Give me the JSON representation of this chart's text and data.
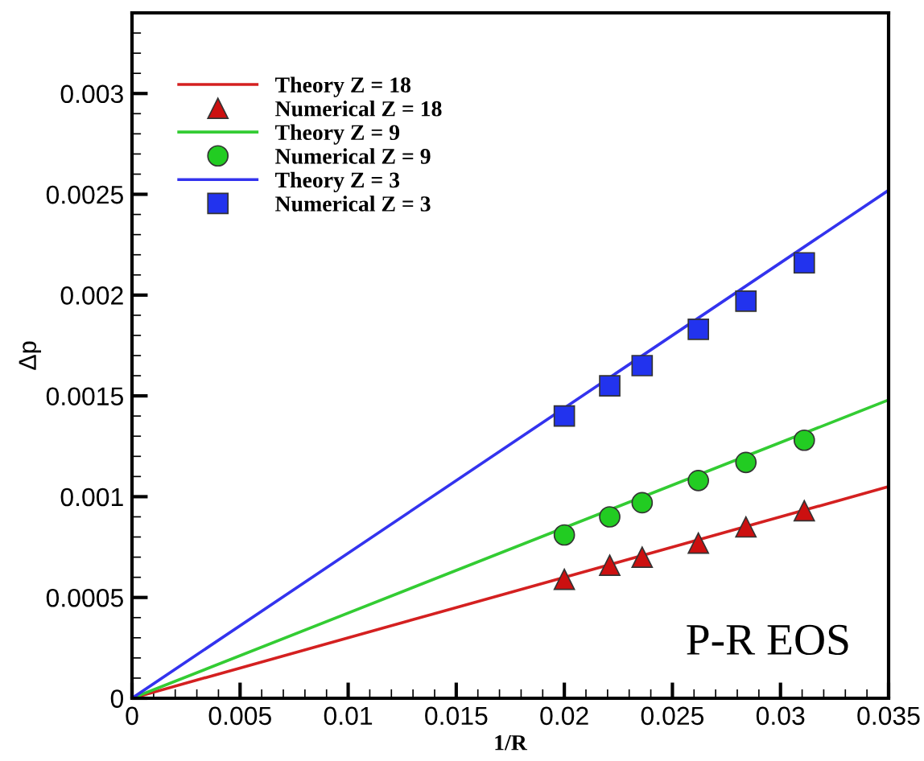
{
  "chart_data": {
    "type": "line",
    "xlabel": "1/R",
    "ylabel": "Δp",
    "annotations": [
      "P-R EOS"
    ],
    "xlim": [
      0,
      0.035
    ],
    "ylim": [
      0,
      0.0034
    ],
    "xticks": [
      {
        "value": 0,
        "label": "0"
      },
      0.005,
      0.01,
      0.015,
      0.02,
      0.025,
      0.03,
      0.035
    ],
    "yticks": [
      {
        "value": 0,
        "label": "0"
      },
      0.0005,
      0.001,
      0.0015,
      0.002,
      0.0025,
      0.003
    ],
    "grid": false,
    "legend": "top left",
    "series": [
      {
        "name": "Theory Z = 18",
        "color": "#d42020",
        "x": [
          0,
          0.035
        ],
        "values": [
          0,
          0.00105
        ],
        "marker": "none"
      },
      {
        "name": "Numerical Z = 18",
        "type": "scatter",
        "color": "#cc1010",
        "marker": "triangle",
        "x": [
          0.02,
          0.0221,
          0.0236,
          0.0262,
          0.0284,
          0.0311
        ],
        "values": [
          0.00059,
          0.00066,
          0.0007,
          0.00077,
          0.00085,
          0.00093
        ]
      },
      {
        "name": "Theory Z = 9",
        "color": "#33cc33",
        "x": [
          0,
          0.035
        ],
        "values": [
          0,
          0.00148
        ],
        "marker": "none"
      },
      {
        "name": "Numerical Z = 9",
        "type": "scatter",
        "color": "#22cc22",
        "marker": "circle",
        "x": [
          0.02,
          0.0221,
          0.0236,
          0.0262,
          0.0284,
          0.0311
        ],
        "values": [
          0.00081,
          0.0009,
          0.00097,
          0.00108,
          0.00117,
          0.00128
        ]
      },
      {
        "name": "Theory Z = 3",
        "color": "#3333ee",
        "x": [
          0,
          0.035
        ],
        "values": [
          0,
          0.00252
        ],
        "marker": "none"
      },
      {
        "name": "Numerical Z = 3",
        "type": "scatter",
        "color": "#2233ee",
        "marker": "square",
        "x": [
          0.02,
          0.0221,
          0.0236,
          0.0262,
          0.0284,
          0.0311
        ],
        "values": [
          0.0014,
          0.00155,
          0.00165,
          0.00183,
          0.00197,
          0.00216
        ]
      }
    ]
  }
}
